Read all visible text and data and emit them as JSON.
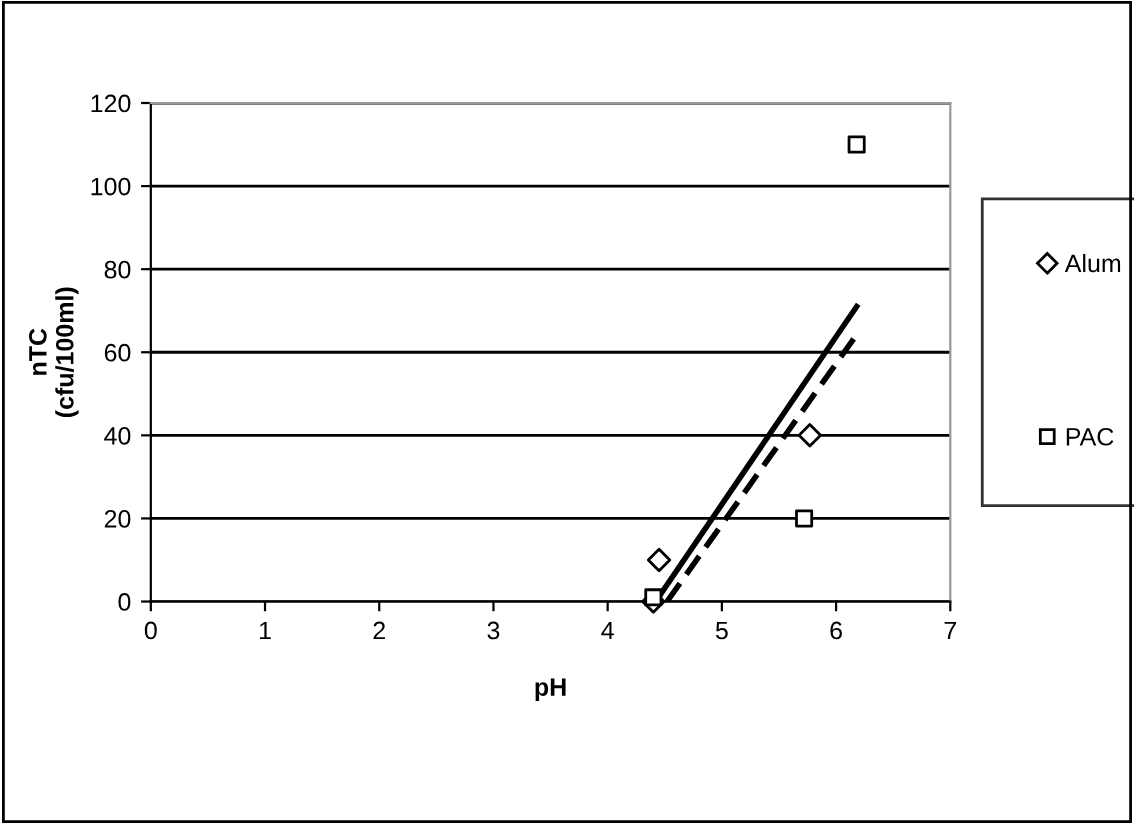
{
  "chart_data": {
    "type": "scatter",
    "xlabel": "pH",
    "ylabel": "nTC\n(cfu/100ml)",
    "series": [
      {
        "name": "Alum",
        "color": "#000000",
        "marker": "diamond",
        "x": [
          4.4,
          4.45,
          5.77
        ],
        "values": [
          0,
          10,
          40
        ]
      },
      {
        "name": "PAC",
        "color": "#000000",
        "marker": "square",
        "x": [
          4.4,
          5.72,
          6.18
        ],
        "values": [
          1,
          20,
          110
        ]
      },
      {
        "type": "line",
        "color": "#000000",
        "line_style": "solid",
        "marker": "none",
        "x": [
          4.42,
          6.18
        ],
        "values": [
          0,
          71
        ]
      },
      {
        "type": "line",
        "color": "#000000",
        "line_style": "dashed",
        "marker": "none",
        "x": [
          4.52,
          6.2
        ],
        "values": [
          0,
          65
        ]
      }
    ],
    "xlim": [
      0,
      7
    ],
    "xticks": [
      0,
      1,
      2,
      3,
      4,
      5,
      6,
      7
    ],
    "ylim": [
      0,
      120
    ],
    "yticks": [
      0,
      20,
      40,
      60,
      80,
      100,
      120
    ],
    "grid": "y",
    "legend": "right"
  }
}
